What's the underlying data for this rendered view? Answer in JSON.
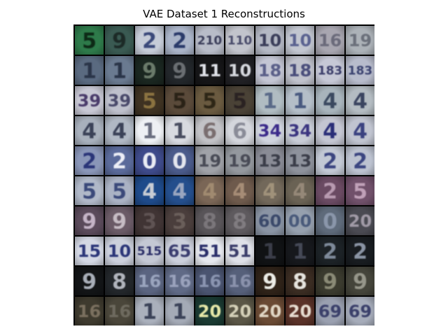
{
  "figure": {
    "title": "VAE Dataset 1 Reconstructions"
  },
  "grid": {
    "rows": 10,
    "cols": 10,
    "cells": [
      [
        {
          "bg": "#2e7a4a",
          "fg": "#0c2a14",
          "digits": "5"
        },
        {
          "bg": "#3a5a52",
          "fg": "#1a2a28",
          "digits": "9"
        },
        {
          "bg": "#c6ccd8",
          "fg": "#3a4a7a",
          "digits": "2"
        },
        {
          "bg": "#aab4c8",
          "fg": "#2c3a6a",
          "digits": "2"
        },
        {
          "bg": "#b8bcc8",
          "fg": "#3a3e5a",
          "digits": "210"
        },
        {
          "bg": "#c2c4cc",
          "fg": "#4a4c6a",
          "digits": "110"
        },
        {
          "bg": "#b4b8c4",
          "fg": "#3a3e5a",
          "digits": "10"
        },
        {
          "bg": "#c2c6d0",
          "fg": "#5a6290",
          "digits": "10"
        },
        {
          "bg": "#a8a6b0",
          "fg": "#6a6a7a",
          "digits": "16"
        },
        {
          "bg": "#acb2b8",
          "fg": "#6a707a",
          "digits": "19"
        }
      ],
      [
        {
          "bg": "#5a6a80",
          "fg": "#2a3448",
          "digits": "1"
        },
        {
          "bg": "#6a7a90",
          "fg": "#2a3448",
          "digits": "1"
        },
        {
          "bg": "#1a2620",
          "fg": "#6a7a6a",
          "digits": "9"
        },
        {
          "bg": "#22262a",
          "fg": "#6a6e72",
          "digits": "9"
        },
        {
          "bg": "#151517",
          "fg": "#e0e2e8",
          "digits": "11"
        },
        {
          "bg": "#202024",
          "fg": "#d6d8de",
          "digits": "10"
        },
        {
          "bg": "#c4c6d4",
          "fg": "#5a5e88",
          "digits": "18"
        },
        {
          "bg": "#c0c2cc",
          "fg": "#4a4e7a",
          "digits": "18"
        },
        {
          "bg": "#c6c8d6",
          "fg": "#3a3e6a",
          "digits": "183"
        },
        {
          "bg": "#b8bccc",
          "fg": "#3a4270",
          "digits": "183"
        }
      ],
      [
        {
          "bg": "#c8c8d4",
          "fg": "#4a3a6a",
          "digits": "39"
        },
        {
          "bg": "#bec0cc",
          "fg": "#4a4a6a",
          "digits": "39"
        },
        {
          "bg": "#3e3222",
          "fg": "#8a7240",
          "digits": "5"
        },
        {
          "bg": "#5a4a3a",
          "fg": "#2a2218",
          "digits": "5"
        },
        {
          "bg": "#6a5a40",
          "fg": "#2e2618",
          "digits": "5"
        },
        {
          "bg": "#4a4236",
          "fg": "#2a2420",
          "digits": "5"
        },
        {
          "bg": "#b0bcc2",
          "fg": "#5a6a88",
          "digits": "1"
        },
        {
          "bg": "#b4bec8",
          "fg": "#4a5a80",
          "digits": "1"
        },
        {
          "bg": "#a8b4bc",
          "fg": "#3a4a60",
          "digits": "4"
        },
        {
          "bg": "#b4bcc2",
          "fg": "#3a4460",
          "digits": "4"
        }
      ],
      [
        {
          "bg": "#a8b0bc",
          "fg": "#3a4258",
          "digits": "4"
        },
        {
          "bg": "#b0b8c4",
          "fg": "#3a4258",
          "digits": "4"
        },
        {
          "bg": "#eef0f4",
          "fg": "#6a6e80",
          "digits": "1"
        },
        {
          "bg": "#d8dae0",
          "fg": "#4a4e60",
          "digits": "1"
        },
        {
          "bg": "#c2c2c6",
          "fg": "#7a6e70",
          "digits": "6"
        },
        {
          "bg": "#d4d6dc",
          "fg": "#8a8c98",
          "digits": "6"
        },
        {
          "bg": "#d0d4de",
          "fg": "#3a2a8a",
          "digits": "34"
        },
        {
          "bg": "#c8ccd6",
          "fg": "#3a3480",
          "digits": "34"
        },
        {
          "bg": "#c4c6d2",
          "fg": "#2a2e78",
          "digits": "4"
        },
        {
          "bg": "#c0c4d0",
          "fg": "#3a4280",
          "digits": "4"
        }
      ],
      [
        {
          "bg": "#8a96b8",
          "fg": "#2a3478",
          "digits": "2"
        },
        {
          "bg": "#5a6a9a",
          "fg": "#eceef6",
          "digits": "2"
        },
        {
          "bg": "#3e4a8a",
          "fg": "#eaecf4",
          "digits": "0"
        },
        {
          "bg": "#4a5a8a",
          "fg": "#e4e6ee",
          "digits": "0"
        },
        {
          "bg": "#a0a2a8",
          "fg": "#4a4c56",
          "digits": "19"
        },
        {
          "bg": "#94989e",
          "fg": "#4a4c56",
          "digits": "19"
        },
        {
          "bg": "#8a8c96",
          "fg": "#3a3c48",
          "digits": "13"
        },
        {
          "bg": "#8e929c",
          "fg": "#3a3e4a",
          "digits": "13"
        },
        {
          "bg": "#c2c8d4",
          "fg": "#3a4480",
          "digits": "2"
        },
        {
          "bg": "#bcc2d0",
          "fg": "#3a4480",
          "digits": "2"
        }
      ],
      [
        {
          "bg": "#b0b8c8",
          "fg": "#3a4a7a",
          "digits": "5"
        },
        {
          "bg": "#aab2c4",
          "fg": "#3a4a7a",
          "digits": "5"
        },
        {
          "bg": "#1e4a8a",
          "fg": "#c8ccd4",
          "digits": "4"
        },
        {
          "bg": "#244e8c",
          "fg": "#9aa6c0",
          "digits": "4"
        },
        {
          "bg": "#7a6656",
          "fg": "#a08a70",
          "digits": "4"
        },
        {
          "bg": "#6e5a4c",
          "fg": "#a68c76",
          "digits": "4"
        },
        {
          "bg": "#72685a",
          "fg": "#a0927a",
          "digits": "4"
        },
        {
          "bg": "#6a6254",
          "fg": "#958878",
          "digits": "4"
        },
        {
          "bg": "#6a4a62",
          "fg": "#b89ab0",
          "digits": "2"
        },
        {
          "bg": "#70506a",
          "fg": "#c0a0b8",
          "digits": "5"
        }
      ],
      [
        {
          "bg": "#5a4a5a",
          "fg": "#c4b4c6",
          "digits": "9"
        },
        {
          "bg": "#6a5a66",
          "fg": "#c6bcc4",
          "digits": "9"
        },
        {
          "bg": "#403434",
          "fg": "#5e5252",
          "digits": "3"
        },
        {
          "bg": "#4a3e3c",
          "fg": "#6a5e5a",
          "digits": "3"
        },
        {
          "bg": "#585458",
          "fg": "#7a767a",
          "digits": "8"
        },
        {
          "bg": "#5e5a5e",
          "fg": "#807c80",
          "digits": "8"
        },
        {
          "bg": "#8a94a4",
          "fg": "#3a4a6a",
          "digits": "60"
        },
        {
          "bg": "#96a0ae",
          "fg": "#4a5a7a",
          "digits": "00"
        },
        {
          "bg": "#5e6a7a",
          "fg": "#8a96aa",
          "digits": "0"
        },
        {
          "bg": "#4a4a52",
          "fg": "#a09aa6",
          "digits": "20"
        }
      ],
      [
        {
          "bg": "#d4d8e4",
          "fg": "#2a3478",
          "digits": "15"
        },
        {
          "bg": "#ccd0dc",
          "fg": "#2a3478",
          "digits": "10"
        },
        {
          "bg": "#c4c8d4",
          "fg": "#2a2e68",
          "digits": "515"
        },
        {
          "bg": "#ccd0dc",
          "fg": "#3a3e70",
          "digits": "65"
        },
        {
          "bg": "#e6e8ee",
          "fg": "#2a2e6a",
          "digits": "51"
        },
        {
          "bg": "#dfe1e8",
          "fg": "#3a3e6a",
          "digits": "51"
        },
        {
          "bg": "#101214",
          "fg": "#3a3e48",
          "digits": "1"
        },
        {
          "bg": "#16181c",
          "fg": "#444856",
          "digits": "1"
        },
        {
          "bg": "#1c2226",
          "fg": "#7e8a9a",
          "digits": "2"
        },
        {
          "bg": "#181c20",
          "fg": "#8a94a4",
          "digits": "2"
        }
      ],
      [
        {
          "bg": "#121416",
          "fg": "#a8aeb8",
          "digits": "9"
        },
        {
          "bg": "#22262a",
          "fg": "#b0b4bc",
          "digits": "8"
        },
        {
          "bg": "#5a6480",
          "fg": "#9aa4be",
          "digits": "16"
        },
        {
          "bg": "#606a86",
          "fg": "#9aa2bc",
          "digits": "16"
        },
        {
          "bg": "#4a5470",
          "fg": "#8a94b0",
          "digits": "16"
        },
        {
          "bg": "#56607a",
          "fg": "#8a92ac",
          "digits": "16"
        },
        {
          "bg": "#2e2218",
          "fg": "#ecece6",
          "digits": "9"
        },
        {
          "bg": "#3a2c22",
          "fg": "#e6e4de",
          "digits": "8"
        },
        {
          "bg": "#3a3a2e",
          "fg": "#8a8a76",
          "digits": "9"
        },
        {
          "bg": "#44443a",
          "fg": "#96968a",
          "digits": "9"
        }
      ],
      [
        {
          "bg": "#3e3a2e",
          "fg": "#7a705e",
          "digits": "16"
        },
        {
          "bg": "#4a463a",
          "fg": "#6e6a5e",
          "digits": "16"
        },
        {
          "bg": "#aab0bc",
          "fg": "#3a4258",
          "digits": "1"
        },
        {
          "bg": "#a4aab6",
          "fg": "#3a4258",
          "digits": "1"
        },
        {
          "bg": "#1a3a32",
          "fg": "#e6e8a8",
          "digits": "20"
        },
        {
          "bg": "#5a5646",
          "fg": "#d4d0b8",
          "digits": "20"
        },
        {
          "bg": "#6a4a34",
          "fg": "#e0d6c4",
          "digits": "20"
        },
        {
          "bg": "#5a3228",
          "fg": "#e6dcd0",
          "digits": "20"
        },
        {
          "bg": "#9aa0b0",
          "fg": "#3a406a",
          "digits": "69"
        },
        {
          "bg": "#a6acba",
          "fg": "#3a406a",
          "digits": "69"
        }
      ]
    ]
  }
}
